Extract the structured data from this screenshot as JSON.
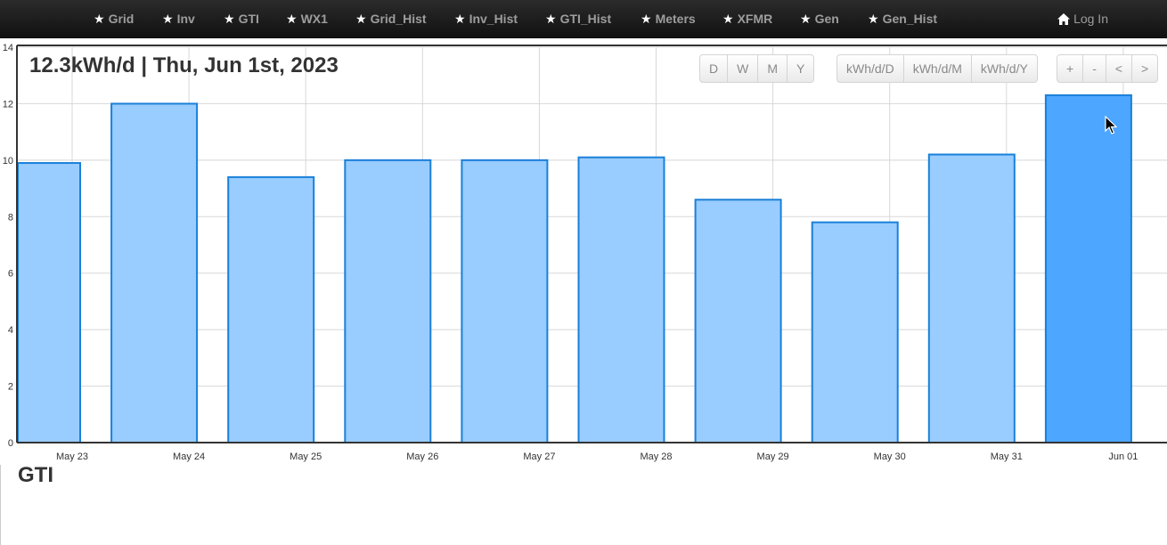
{
  "nav": {
    "items": [
      {
        "label": "Grid"
      },
      {
        "label": "Inv"
      },
      {
        "label": "GTI"
      },
      {
        "label": "WX1"
      },
      {
        "label": "Grid_Hist"
      },
      {
        "label": "Inv_Hist"
      },
      {
        "label": "GTI_Hist"
      },
      {
        "label": "Meters"
      },
      {
        "label": "XFMR"
      },
      {
        "label": "Gen"
      },
      {
        "label": "Gen_Hist"
      }
    ],
    "login_label": "Log In",
    "star_glyph": "★"
  },
  "chart_header": {
    "title": "12.3kWh/d | Thu, Jun 1st, 2023"
  },
  "controls": {
    "period": [
      "D",
      "W",
      "M",
      "Y"
    ],
    "units": [
      "kWh/d/D",
      "kWh/d/M",
      "kWh/d/Y"
    ],
    "navigation": [
      "+",
      "-",
      "<",
      ">"
    ]
  },
  "section": {
    "title": "GTI"
  },
  "colors": {
    "bar_fill": "#99ccff",
    "bar_fill_selected": "#4da6ff",
    "bar_stroke": "#1a80d9",
    "grid": "#d8d8d8"
  },
  "chart_data": {
    "type": "bar",
    "categories": [
      "May 23",
      "May 24",
      "May 25",
      "May 26",
      "May 27",
      "May 28",
      "May 29",
      "May 30",
      "May 31",
      "Jun 01"
    ],
    "values": [
      9.9,
      12.0,
      9.4,
      10.0,
      10.0,
      10.1,
      8.6,
      7.8,
      10.2,
      12.3
    ],
    "selected_index": 9,
    "yticks": [
      "0",
      "2",
      "4",
      "6",
      "8",
      "10",
      "12",
      "14"
    ],
    "ylim": [
      0,
      14
    ],
    "grid": true,
    "title": "12.3kWh/d | Thu, Jun 1st, 2023",
    "xlabel": "",
    "ylabel": ""
  }
}
